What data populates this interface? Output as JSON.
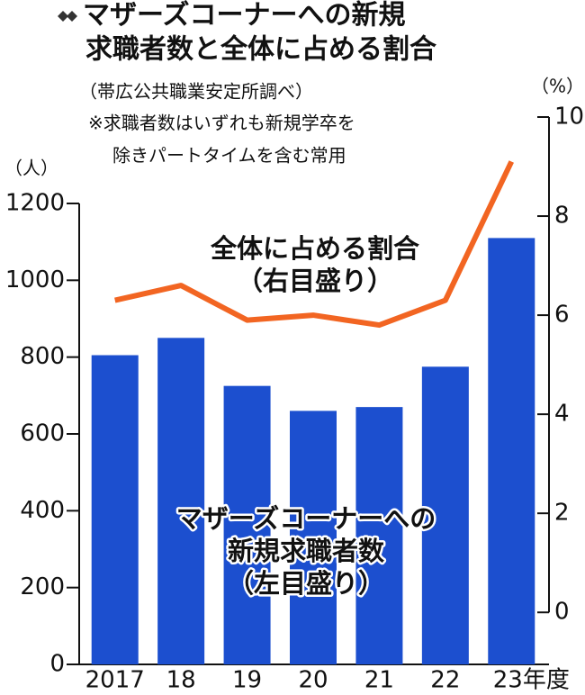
{
  "chart_data": {
    "type": "bar-line",
    "title": [
      "マザーズコーナーへの新規",
      "求職者数と全体に占める割合"
    ],
    "subtitle": "（帯広公共職業安定所調べ）",
    "notes": [
      "※求職者数はいずれも新規学卒を",
      "除きパートタイムを含む常用"
    ],
    "y_unit": "（人）",
    "y2_unit": "（%）",
    "categories": [
      "2017",
      "18",
      "19",
      "20",
      "21",
      "22",
      "23年度"
    ],
    "ylim": [
      0,
      1425
    ],
    "yticks": [
      0,
      200,
      400,
      600,
      800,
      1000,
      1200
    ],
    "y2lim": [
      -1.05,
      10
    ],
    "y2ticks": [
      0,
      2,
      4,
      6,
      8,
      10
    ],
    "series": [
      {
        "type": "bar",
        "color": "#1c4fcf",
        "label": [
          "マザーズコーナーへの",
          "新規求職者数",
          "（左目盛り）"
        ],
        "values": [
          805,
          850,
          725,
          660,
          670,
          775,
          1110
        ]
      },
      {
        "type": "line",
        "axis": "y2",
        "color": "#f26522",
        "label": [
          "全体に占める割合",
          "（右目盛り）"
        ],
        "values": [
          6.3,
          6.6,
          5.9,
          6.0,
          5.8,
          6.3,
          9.1
        ]
      }
    ]
  }
}
